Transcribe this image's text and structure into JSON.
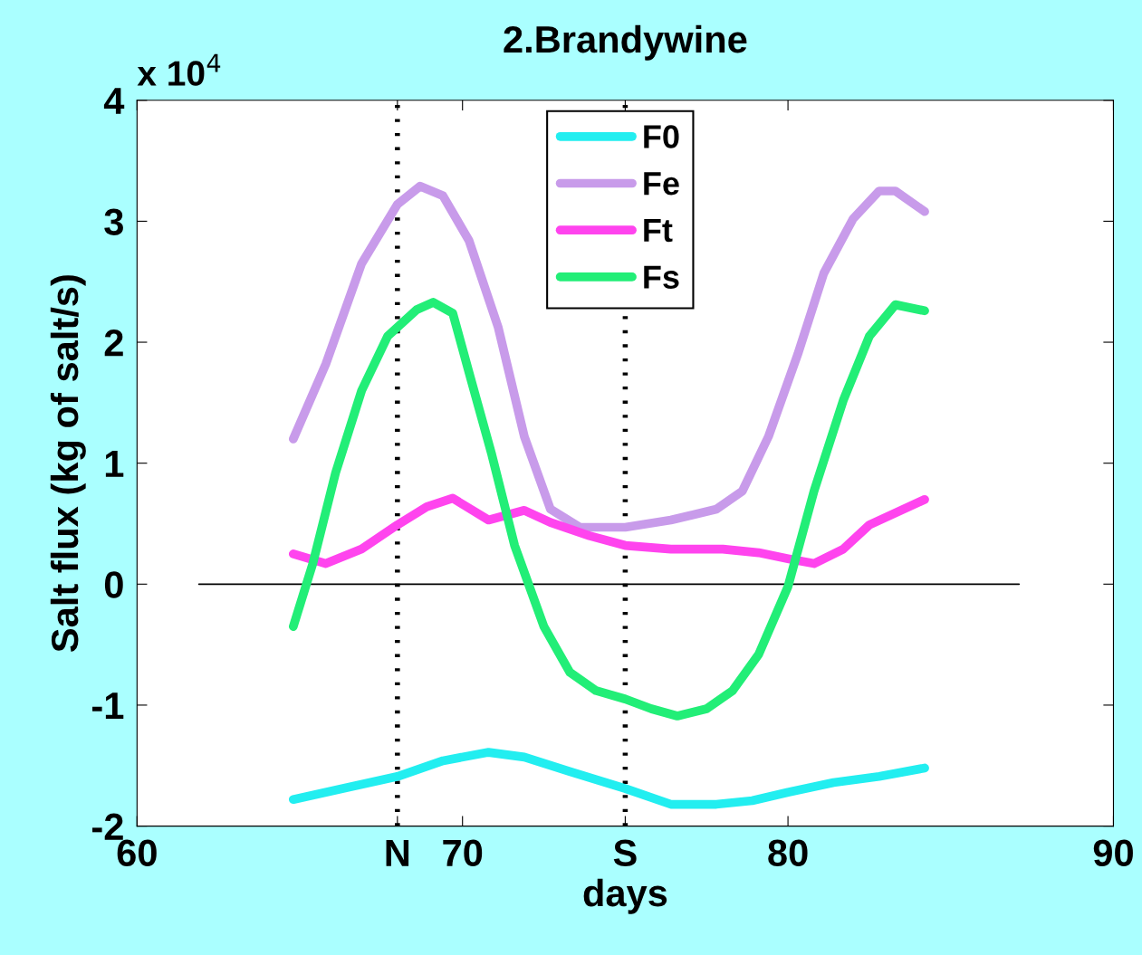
{
  "chart_data": {
    "type": "line",
    "title": "2.Brandywine",
    "xlabel": "days",
    "ylabel": "Salt flux (kg of salt/s)",
    "annotations": [
      "x 10$^{4}$"
    ],
    "xlim": [
      60,
      90
    ],
    "xticks": [
      60,
      {
        "value": 68,
        "label": "N"
      },
      70,
      {
        "value": 75,
        "label": "S"
      },
      80,
      90
    ],
    "ylim": [
      -2,
      4
    ],
    "yticks": [
      -2,
      -1,
      0,
      1,
      2,
      3,
      4
    ],
    "grid": false,
    "legend": "top",
    "line_style": "solid",
    "marker": "none",
    "ref_lines": [
      {
        "axis": "x",
        "value": 68,
        "color": "#000000",
        "line_style": "dotted"
      },
      {
        "axis": "x",
        "value": 75,
        "color": "#000000",
        "line_style": "dotted"
      }
    ],
    "series": [
      {
        "name": "F0",
        "color": "#22eef0",
        "x": [
          64.8,
          66.3,
          68.0,
          69.4,
          70.8,
          71.9,
          73.3,
          75.0,
          76.4,
          77.8,
          78.9,
          80.0,
          81.4,
          82.8,
          84.2
        ],
        "values": [
          -1.78,
          -1.69,
          -1.59,
          -1.46,
          -1.39,
          -1.43,
          -1.55,
          -1.69,
          -1.82,
          -1.82,
          -1.79,
          -1.72,
          -1.64,
          -1.59,
          -1.52
        ]
      },
      {
        "name": "Fe",
        "color": "#c89bea",
        "x": [
          64.8,
          65.8,
          66.9,
          68.0,
          68.7,
          69.4,
          70.2,
          71.1,
          71.9,
          72.7,
          73.6,
          75.0,
          76.4,
          77.8,
          78.6,
          79.4,
          80.3,
          81.1,
          82.0,
          82.8,
          83.3,
          84.2
        ],
        "values": [
          1.2,
          1.82,
          2.65,
          3.14,
          3.29,
          3.21,
          2.84,
          2.12,
          1.22,
          0.62,
          0.47,
          0.47,
          0.53,
          0.62,
          0.77,
          1.22,
          1.9,
          2.57,
          3.02,
          3.25,
          3.25,
          3.08
        ]
      },
      {
        "name": "Ft",
        "color": "#ff44ee",
        "x": [
          64.8,
          65.8,
          66.9,
          68.0,
          68.9,
          69.7,
          70.8,
          71.9,
          72.7,
          73.9,
          75.0,
          76.4,
          78.0,
          79.1,
          80.0,
          80.8,
          81.7,
          82.5,
          84.2
        ],
        "values": [
          0.25,
          0.17,
          0.29,
          0.49,
          0.64,
          0.71,
          0.53,
          0.61,
          0.51,
          0.4,
          0.32,
          0.29,
          0.29,
          0.26,
          0.21,
          0.17,
          0.29,
          0.49,
          0.7
        ]
      },
      {
        "name": "Fs",
        "color": "#22ee77",
        "x": [
          64.8,
          65.4,
          66.1,
          66.9,
          67.7,
          68.6,
          69.1,
          69.7,
          70.2,
          70.9,
          71.6,
          72.5,
          73.3,
          74.1,
          75.0,
          75.8,
          76.6,
          77.5,
          78.3,
          79.1,
          80.0,
          80.8,
          81.7,
          82.5,
          83.3,
          84.2
        ],
        "values": [
          -0.35,
          0.17,
          0.92,
          1.6,
          2.05,
          2.27,
          2.33,
          2.24,
          1.75,
          1.07,
          0.32,
          -0.35,
          -0.73,
          -0.88,
          -0.95,
          -1.03,
          -1.09,
          -1.03,
          -0.88,
          -0.58,
          -0.02,
          0.77,
          1.52,
          2.05,
          2.31,
          2.26
        ]
      },
      {
        "color": "#000000",
        "x": [
          61.9,
          87.1
        ],
        "values": [
          0,
          0
        ]
      }
    ]
  }
}
